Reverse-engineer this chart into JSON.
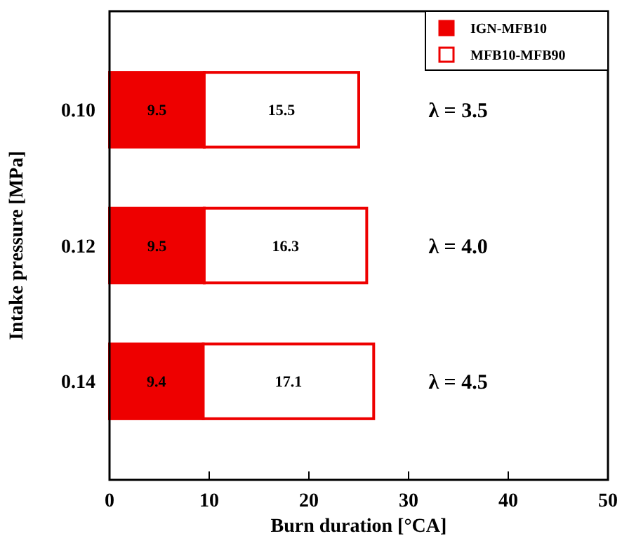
{
  "chart_data": {
    "type": "bar",
    "orientation": "horizontal",
    "stacked": true,
    "xlabel": "Burn duration [°CA]",
    "ylabel": "Intake pressure [MPa]",
    "categories": [
      "0.10",
      "0.12",
      "0.14"
    ],
    "series": [
      {
        "name": "IGN-MFB10",
        "color": "#ee0000",
        "values": [
          9.5,
          9.5,
          9.4
        ]
      },
      {
        "name": "MFB10-MFB90",
        "color": "#ffffff",
        "values": [
          15.5,
          16.3,
          17.1
        ]
      }
    ],
    "xlim": [
      0,
      50
    ],
    "xticks": [
      0,
      10,
      20,
      30,
      40,
      50
    ],
    "data_labels": true,
    "legend": "top right",
    "grid": false,
    "annotations": [
      "λ = 3.5",
      "λ = 4.0",
      "λ = 4.5"
    ]
  }
}
